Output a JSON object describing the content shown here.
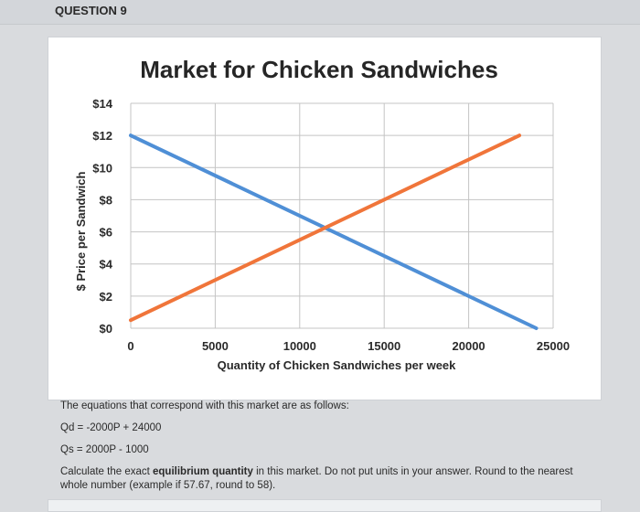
{
  "question": {
    "title": "QUESTION 9",
    "intro": "The equations that correspond with this market are as follows:",
    "demand_equation": "Qd = -2000P + 24000",
    "supply_equation": "Qs = 2000P - 1000",
    "prompt_before": "Calculate the exact ",
    "prompt_bold": "equilibrium quantity",
    "prompt_after": " in this market. Do not put units in your answer. Round to the nearest whole number (example if 57.67, round to 58)."
  },
  "chart_data": {
    "type": "line",
    "title": "Market for Chicken Sandwiches",
    "xlabel": "Quantity of Chicken Sandwiches per week",
    "ylabel": "$ Price per Sandwich",
    "xlim": [
      0,
      25000
    ],
    "ylim": [
      0,
      14
    ],
    "x_ticks": [
      0,
      5000,
      10000,
      15000,
      20000,
      25000
    ],
    "x_tick_labels": [
      "0",
      "5000",
      "10000",
      "15000",
      "20000",
      "25000"
    ],
    "y_ticks": [
      0,
      2,
      4,
      6,
      8,
      10,
      12,
      14
    ],
    "y_tick_labels": [
      "$0",
      "$2",
      "$4",
      "$6",
      "$8",
      "$10",
      "$12",
      "$14"
    ],
    "grid": true,
    "series": [
      {
        "name": "",
        "color": "#4f8fd6",
        "points": [
          [
            0,
            12
          ],
          [
            24000,
            0
          ]
        ]
      },
      {
        "name": "",
        "color": "#f0753a",
        "points": [
          [
            0,
            0.5
          ],
          [
            23000,
            12
          ]
        ]
      }
    ]
  }
}
